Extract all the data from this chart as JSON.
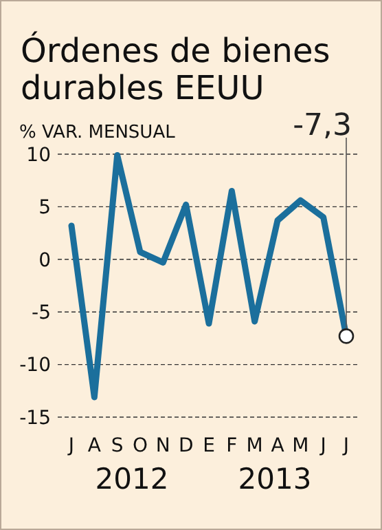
{
  "chart_data": {
    "type": "line",
    "title": "Órdenes de bienes durables EEUU",
    "subtitle": "% VAR. MENSUAL",
    "categories": [
      "J",
      "A",
      "S",
      "O",
      "N",
      "D",
      "E",
      "F",
      "M",
      "A",
      "M",
      "J",
      "J"
    ],
    "series": [
      {
        "color": "#1b6f9c",
        "values": [
          3.2,
          -13.1,
          9.9,
          0.7,
          -0.3,
          5.2,
          -6.1,
          6.5,
          -5.9,
          3.7,
          5.6,
          4.0,
          -7.3
        ],
        "value_labels": [
          null,
          null,
          null,
          null,
          null,
          null,
          null,
          null,
          null,
          null,
          null,
          null,
          "-7,3"
        ]
      }
    ],
    "ylim": [
      -15,
      10
    ],
    "yticks": [
      -15,
      -10,
      -5,
      0,
      5,
      10
    ],
    "grid": "y",
    "annotations": [
      "2012",
      "2013"
    ]
  }
}
